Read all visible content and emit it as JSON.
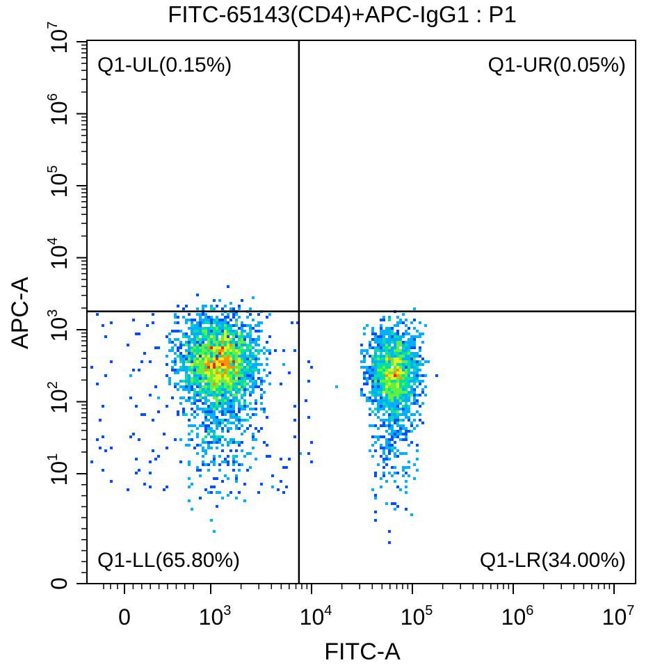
{
  "chart_data": {
    "type": "scatter",
    "title": "FITC-65143(CD4)+APC-IgG1 : P1",
    "xlabel": "FITC-A",
    "ylabel": "APC-A",
    "x_scale": "biexponential (log with linear region near 0)",
    "y_scale": "biexponential (log with linear region near 0)",
    "xlim": [
      -300,
      10000000
    ],
    "ylim": [
      0,
      10000000
    ],
    "x_ticks": [
      {
        "base": "0",
        "exp": ""
      },
      {
        "base": "10",
        "exp": "3"
      },
      {
        "base": "10",
        "exp": "4"
      },
      {
        "base": "10",
        "exp": "5"
      },
      {
        "base": "10",
        "exp": "6"
      },
      {
        "base": "10",
        "exp": "7"
      }
    ],
    "y_ticks": [
      {
        "base": "0",
        "exp": ""
      },
      {
        "base": "10",
        "exp": "1"
      },
      {
        "base": "10",
        "exp": "2"
      },
      {
        "base": "10",
        "exp": "3"
      },
      {
        "base": "10",
        "exp": "4"
      },
      {
        "base": "10",
        "exp": "5"
      },
      {
        "base": "10",
        "exp": "6"
      },
      {
        "base": "10",
        "exp": "7"
      }
    ],
    "gates": {
      "x_threshold": 7500,
      "y_threshold": 1800
    },
    "quadrants": [
      {
        "label": "Q1-UL(0.15%)",
        "position": "top-left"
      },
      {
        "label": "Q1-UR(0.05%)",
        "position": "top-right"
      },
      {
        "label": "Q1-LL(65.80%)",
        "position": "bottom-left"
      },
      {
        "label": "Q1-LR(34.00%)",
        "position": "bottom-right"
      }
    ],
    "populations": [
      {
        "name": "",
        "x_center": 1200,
        "y_center": 400,
        "fraction": 0.658
      },
      {
        "name": "",
        "x_center": 65000,
        "y_center": 280,
        "fraction": 0.34
      }
    ],
    "density_colors": [
      "#0000e0",
      "#0050ff",
      "#00b0ff",
      "#00e0a0",
      "#60f040",
      "#e0f020",
      "#ff9000",
      "#ff2000"
    ]
  }
}
